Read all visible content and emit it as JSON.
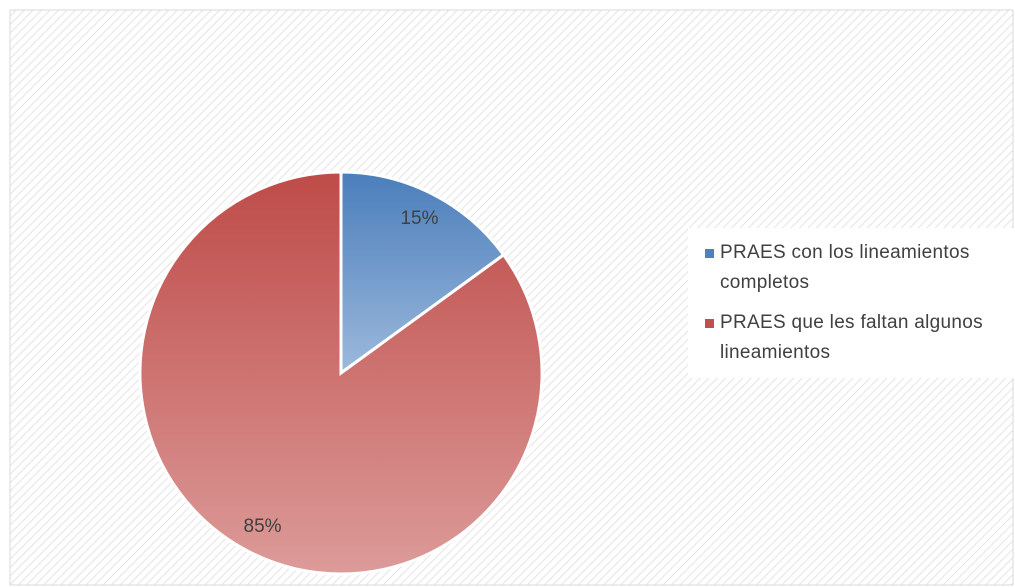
{
  "chart_data": {
    "type": "pie",
    "categories": [
      "PRAES con los lineamientos completos",
      "PRAES que les faltan algunos lineamientos"
    ],
    "values": [
      15,
      85
    ],
    "value_labels": [
      "15%",
      "85%"
    ],
    "colors": [
      "#4f81bd",
      "#c0504d"
    ],
    "legend": "right"
  }
}
